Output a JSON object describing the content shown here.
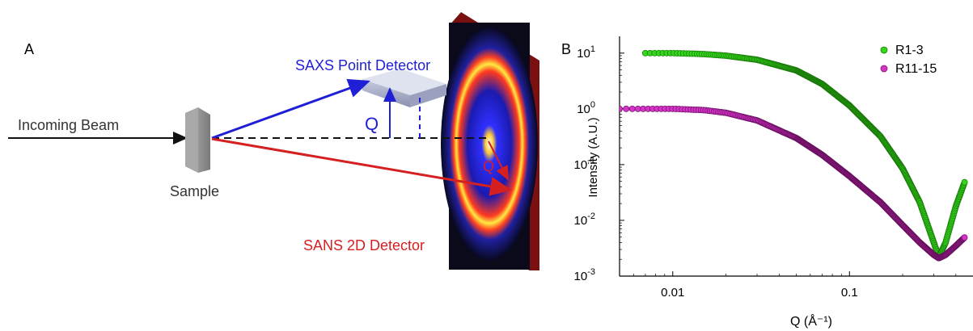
{
  "panel_a": {
    "label": "A",
    "beam_label": "Incoming Beam",
    "sample_label": "Sample",
    "saxs_label": "SAXS Point Detector",
    "sans_label": "SANS 2D Detector",
    "q_label_saxs": "Q",
    "q_label_sans": "Q",
    "colors": {
      "saxs": "#1f1fd6",
      "sans": "#d42020",
      "beam": "#111111"
    }
  },
  "panel_b": {
    "label": "B",
    "ylabel": "Intensity (A.U.)",
    "xlabel": "Q (Å⁻¹)",
    "x_ticks": [
      "0.01",
      "0.1"
    ],
    "y_ticks": [
      {
        "base": "10",
        "exp": "1"
      },
      {
        "base": "10",
        "exp": "0"
      },
      {
        "base": "10",
        "exp": "-1"
      },
      {
        "base": "10",
        "exp": "-2"
      },
      {
        "base": "10",
        "exp": "-3"
      }
    ]
  },
  "chart_data": {
    "type": "scatter",
    "xscale": "log",
    "yscale": "log",
    "xlim": [
      0.005,
      0.5
    ],
    "ylim": [
      0.001,
      20
    ],
    "xlabel": "Q (Å⁻¹)",
    "ylabel": "Intensity (A.U.)",
    "legend_position": "top-right",
    "series": [
      {
        "name": "R1-3",
        "color": "#33d61a",
        "x": [
          0.007,
          0.01,
          0.015,
          0.02,
          0.03,
          0.05,
          0.07,
          0.1,
          0.15,
          0.2,
          0.25,
          0.3,
          0.32,
          0.35,
          0.4,
          0.45
        ],
        "y": [
          10,
          10,
          9.6,
          9.0,
          7.6,
          4.9,
          2.8,
          1.15,
          0.32,
          0.085,
          0.021,
          0.004,
          0.0022,
          0.004,
          0.018,
          0.05
        ]
      },
      {
        "name": "R11-15",
        "color": "#d633c8",
        "x": [
          0.005,
          0.01,
          0.015,
          0.02,
          0.03,
          0.05,
          0.07,
          0.1,
          0.15,
          0.2,
          0.25,
          0.3,
          0.32,
          0.35,
          0.4,
          0.45
        ],
        "y": [
          1.0,
          1.0,
          0.95,
          0.85,
          0.62,
          0.3,
          0.15,
          0.062,
          0.021,
          0.0082,
          0.004,
          0.0024,
          0.0021,
          0.0024,
          0.0035,
          0.005
        ]
      }
    ]
  }
}
